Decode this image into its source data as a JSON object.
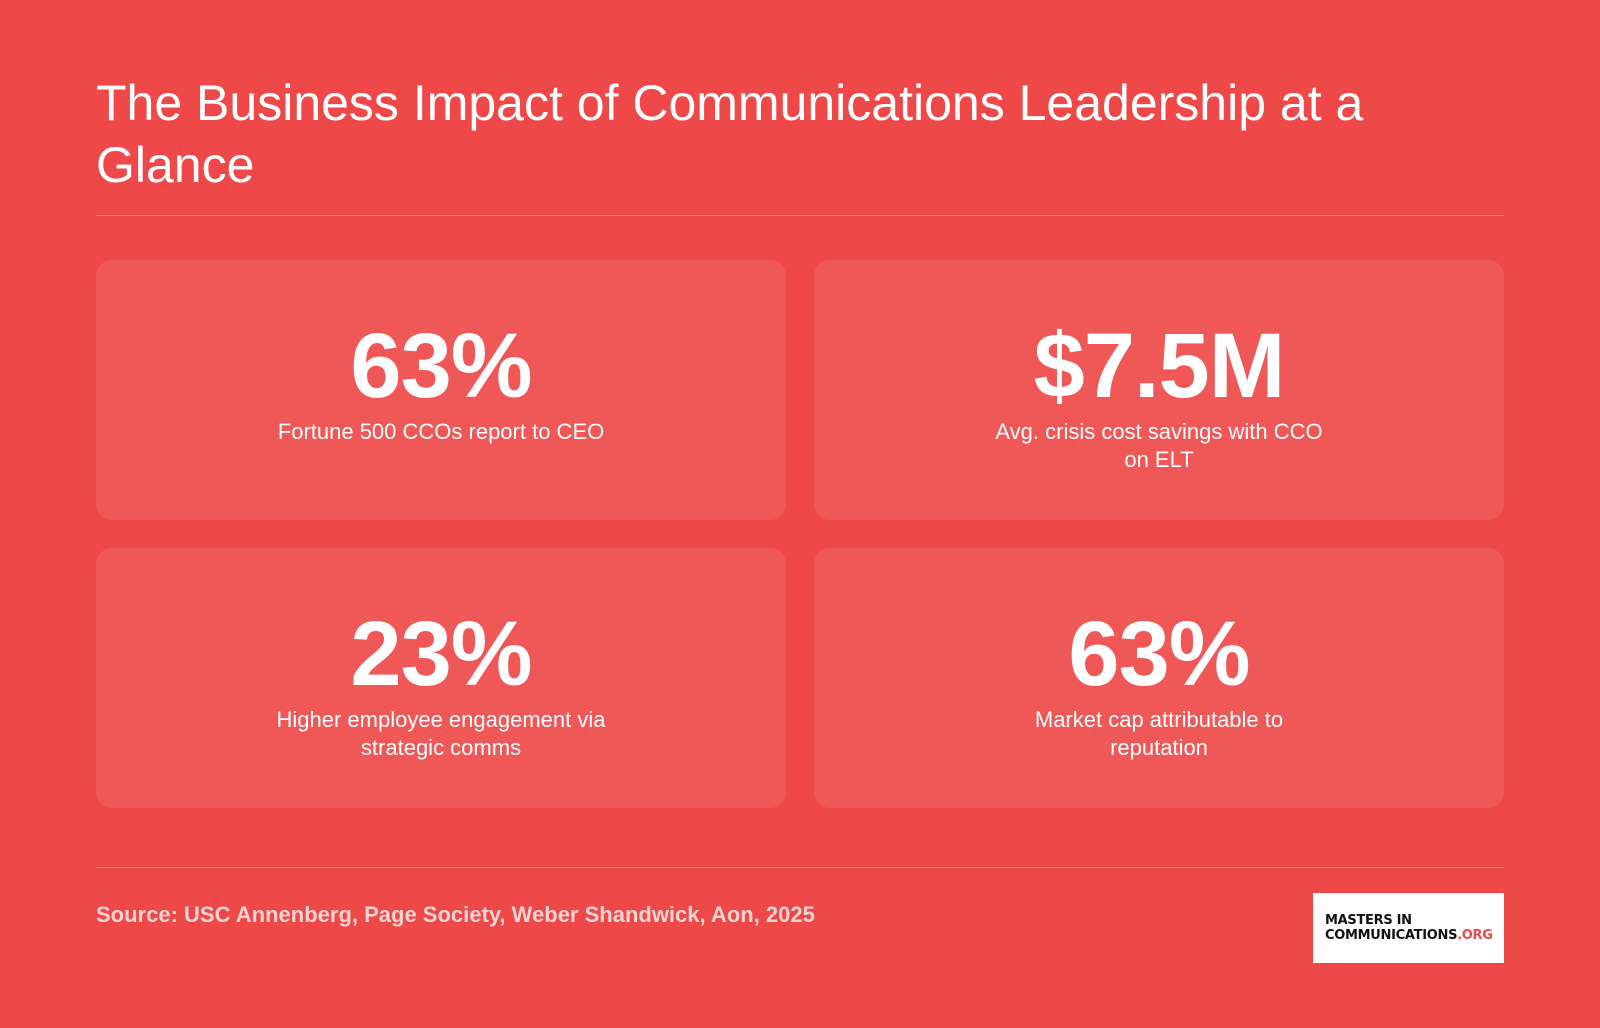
{
  "title": "The Business Impact of Communications Leadership at a Glance",
  "stats": [
    {
      "value": "63%",
      "label": "Fortune 500 CCOs report to CEO"
    },
    {
      "value": "$7.5M",
      "label": "Avg. crisis cost savings with CCO on ELT"
    },
    {
      "value": "23%",
      "label": "Higher employee engagement via strategic comms"
    },
    {
      "value": "63%",
      "label": "Market cap attributable to reputation"
    }
  ],
  "source": "Source: USC Annenberg, Page Society, Weber Shandwick, Aon, 2025",
  "logo": {
    "line1": "MASTERS IN",
    "line2": "COMMUNICATIONS",
    "line2_suffix": ".ORG"
  },
  "colors": {
    "background": "#ef4848",
    "card": "#f05757",
    "text": "#ffffff",
    "source_text": "#f8d4d2",
    "logo_accent": "#ef4848"
  }
}
